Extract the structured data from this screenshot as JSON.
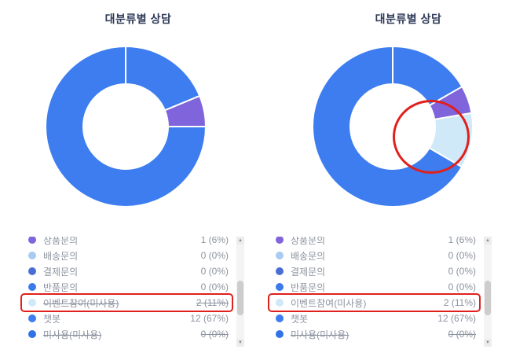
{
  "annotation_color": "#e0201c",
  "chart_data": [
    {
      "type": "pie",
      "variant": "donut",
      "title": "대분류별 상담",
      "legend_position": "bottom",
      "segments": [
        {
          "color": "#3d7df0",
          "percent": 18.75
        },
        {
          "color": "#7f64dc",
          "percent": 6.25
        },
        {
          "color": "#3d7df0",
          "percent": 75.0
        }
      ],
      "legend": [
        {
          "label": "상품문의",
          "value": "1 (6%)",
          "color": "#7f64dc",
          "struck": false,
          "highlighted": false
        },
        {
          "label": "배송문의",
          "value": "0 (0%)",
          "color": "#a8cbf2",
          "struck": false,
          "highlighted": false
        },
        {
          "label": "결제문의",
          "value": "0 (0%)",
          "color": "#4a6fd4",
          "struck": false,
          "highlighted": false
        },
        {
          "label": "반품문의",
          "value": "0 (0%)",
          "color": "#3c79ea",
          "struck": false,
          "highlighted": false
        },
        {
          "label": "이벤트참여(미사용)",
          "value": "2 (11%)",
          "color": "#cfe9f8",
          "struck": true,
          "highlighted": true
        },
        {
          "label": "챗봇",
          "value": "12 (67%)",
          "color": "#3d7df0",
          "struck": false,
          "highlighted": false
        },
        {
          "label": "미사용(미사용)",
          "value": "0 (0%)",
          "color": "#3173e6",
          "struck": true,
          "highlighted": false
        }
      ]
    },
    {
      "type": "pie",
      "variant": "donut",
      "title": "대분류별 상담",
      "legend_position": "bottom",
      "segments": [
        {
          "color": "#3d7df0",
          "percent": 16.7
        },
        {
          "color": "#7f64dc",
          "percent": 5.6
        },
        {
          "color": "#cfe9f8",
          "percent": 11.1
        },
        {
          "color": "#3d7df0",
          "percent": 66.6
        }
      ],
      "annotation": {
        "type": "circle",
        "color": "#e0201c",
        "circled_segment_index": 2
      },
      "legend": [
        {
          "label": "상품문의",
          "value": "1 (6%)",
          "color": "#7f64dc",
          "struck": false,
          "highlighted": false
        },
        {
          "label": "배송문의",
          "value": "0 (0%)",
          "color": "#a8cbf2",
          "struck": false,
          "highlighted": false
        },
        {
          "label": "결제문의",
          "value": "0 (0%)",
          "color": "#4a6fd4",
          "struck": false,
          "highlighted": false
        },
        {
          "label": "반품문의",
          "value": "0 (0%)",
          "color": "#3c79ea",
          "struck": false,
          "highlighted": false
        },
        {
          "label": "이벤트참여(미사용)",
          "value": "2 (11%)",
          "color": "#cfe9f8",
          "struck": false,
          "highlighted": true
        },
        {
          "label": "챗봇",
          "value": "12 (67%)",
          "color": "#3d7df0",
          "struck": false,
          "highlighted": false
        },
        {
          "label": "미사용(미사용)",
          "value": "0 (0%)",
          "color": "#3173e6",
          "struck": true,
          "highlighted": false
        }
      ]
    }
  ]
}
